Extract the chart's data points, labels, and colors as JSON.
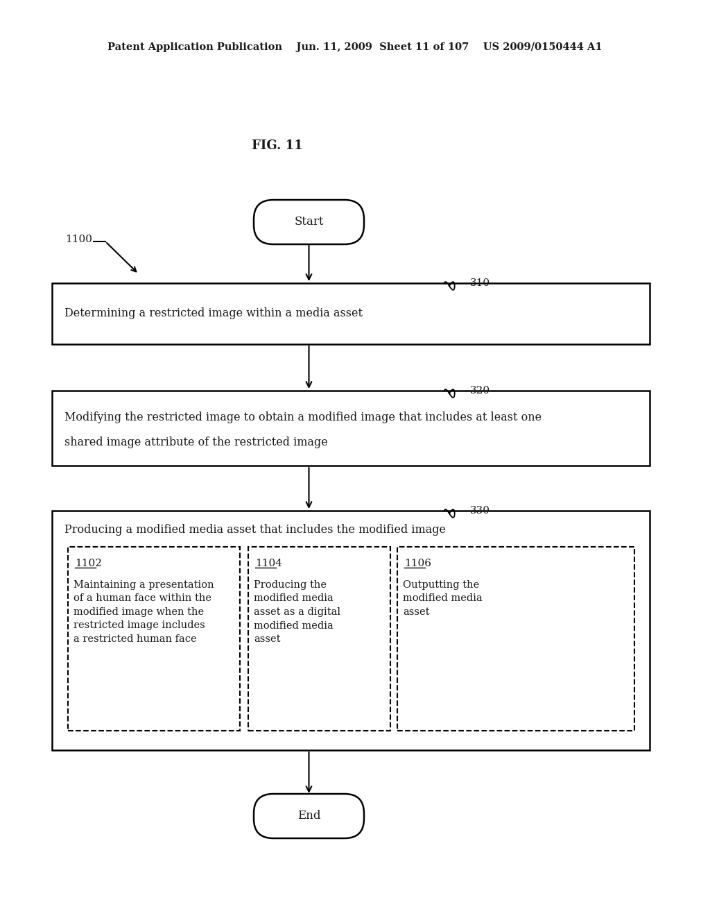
{
  "background_color": "#ffffff",
  "header_text": "Patent Application Publication    Jun. 11, 2009  Sheet 11 of 107    US 2009/0150444 A1",
  "fig_label": "FIG. 11",
  "label_1100": "1100",
  "label_310": "310",
  "label_320": "320",
  "label_330": "330",
  "start_text": "Start",
  "end_text": "End",
  "box1_text": "Determining a restricted image within a media asset",
  "box2_line1": "Modifying the restricted image to obtain a modified image that includes at least one",
  "box2_line2": "shared image attribute of the restricted image",
  "box3_header": "Producing a modified media asset that includes the modified image",
  "sub1_label": "1102",
  "sub1_text": "Maintaining a presentation\nof a human face within the\nmodified image when the\nrestricted image includes\na restricted human face",
  "sub2_label": "1104",
  "sub2_text": "Producing the\nmodified media\nasset as a digital\nmodified media\nasset",
  "sub3_label": "1106",
  "sub3_text": "Outputting the\nmodified media\nasset"
}
